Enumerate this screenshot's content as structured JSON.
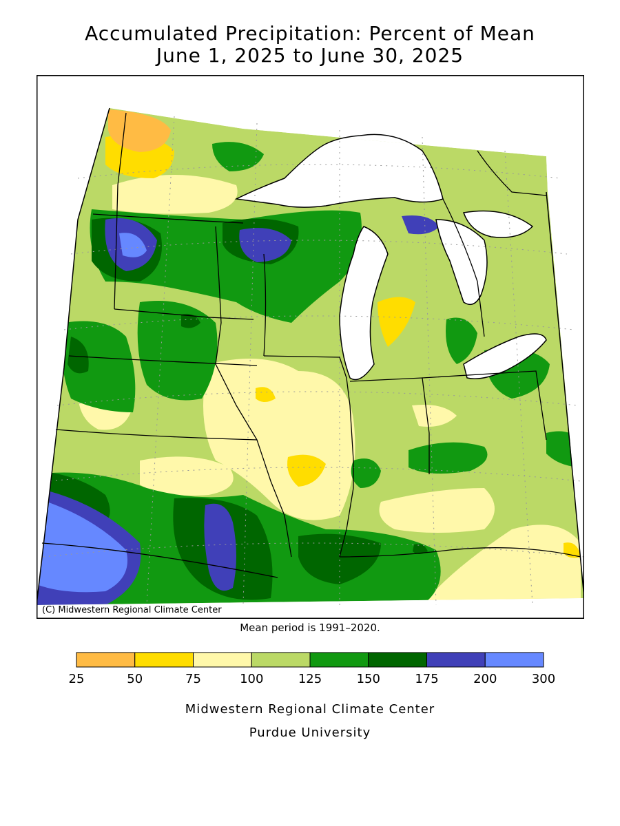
{
  "title": {
    "line1": "Accumulated Precipitation: Percent of Mean",
    "line2": "June 1, 2025 to June 30, 2025"
  },
  "map": {
    "copyright": "(C) Midwestern Regional Climate Center",
    "mean_period": "Mean period is 1991–2020.",
    "colors": {
      "c25_50": "#FFBB44",
      "c50_75": "#FFDD00",
      "c75_100": "#FFF8AA",
      "c100_125": "#BBD966",
      "c125_150": "#119911",
      "c150_175": "#006600",
      "c175_200": "#4040B8",
      "c200_300": "#6688FF",
      "water": "#FFFFFF"
    }
  },
  "legend": {
    "ticks": [
      "25",
      "50",
      "75",
      "100",
      "125",
      "150",
      "175",
      "200",
      "300"
    ],
    "colors": [
      "#FFBB44",
      "#FFDD00",
      "#FFF8AA",
      "#BBD966",
      "#119911",
      "#006600",
      "#4040B8",
      "#6688FF"
    ]
  },
  "credits": {
    "line1": "Midwestern Regional Climate Center",
    "line2": "Purdue University"
  }
}
